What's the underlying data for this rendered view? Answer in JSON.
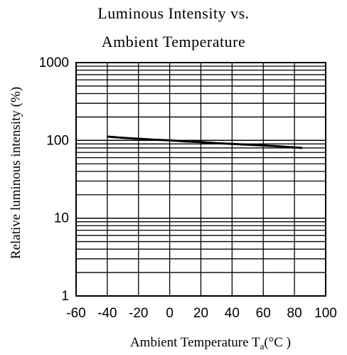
{
  "chart_data": {
    "type": "line",
    "title_line1": "Luminous Intensity vs.",
    "title_line2": "Ambient Temperature",
    "ylabel": "Relative luminous intensity (%)",
    "xlabel_main": "Ambient Temperature T",
    "xlabel_sub": "a",
    "xlabel_unit": "(°C )",
    "x_range": [
      -60,
      100
    ],
    "y_range": [
      1,
      1000
    ],
    "y_scale": "log",
    "grid": true,
    "x_ticks": [
      -60,
      -40,
      -20,
      0,
      20,
      40,
      60,
      80,
      100
    ],
    "y_ticks": [
      1,
      10,
      100,
      1000
    ],
    "x_tick_labels": [
      "-60",
      "-40",
      "-20",
      "0",
      "20",
      "40",
      "60",
      "80",
      "100"
    ],
    "y_tick_labels": [
      "1",
      "10",
      "100",
      "1000"
    ],
    "series": [
      {
        "x": [
          -40,
          -30,
          -20,
          -10,
          0,
          10,
          20,
          30,
          40,
          50,
          60,
          70,
          80,
          85
        ],
        "y": [
          112,
          108,
          105,
          102,
          100,
          97,
          95,
          92,
          90,
          88,
          86,
          84,
          81,
          80
        ]
      }
    ]
  }
}
